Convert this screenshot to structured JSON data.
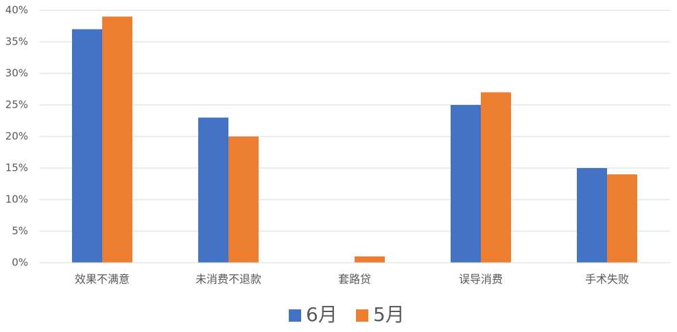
{
  "chart_data": {
    "type": "bar",
    "categories": [
      "效果不满意",
      "未消费不退款",
      "套路贷",
      "误导消费",
      "手术失败"
    ],
    "series": [
      {
        "name": "6月",
        "color": "#4472c4",
        "values": [
          37,
          23,
          0,
          25,
          15
        ]
      },
      {
        "name": "5月",
        "color": "#ed7d31",
        "values": [
          39,
          20,
          1,
          27,
          14
        ]
      }
    ],
    "ylim": [
      0,
      40
    ],
    "yticks": [
      {
        "value": 0,
        "label": "0%"
      },
      {
        "value": 5,
        "label": "5%"
      },
      {
        "value": 10,
        "label": "10%"
      },
      {
        "value": 15,
        "label": "15%"
      },
      {
        "value": 20,
        "label": "20%"
      },
      {
        "value": 25,
        "label": "25%"
      },
      {
        "value": 30,
        "label": "30%"
      },
      {
        "value": 35,
        "label": "35%"
      },
      {
        "value": 40,
        "label": "40%"
      }
    ],
    "grid": true,
    "legend": "bottom"
  }
}
